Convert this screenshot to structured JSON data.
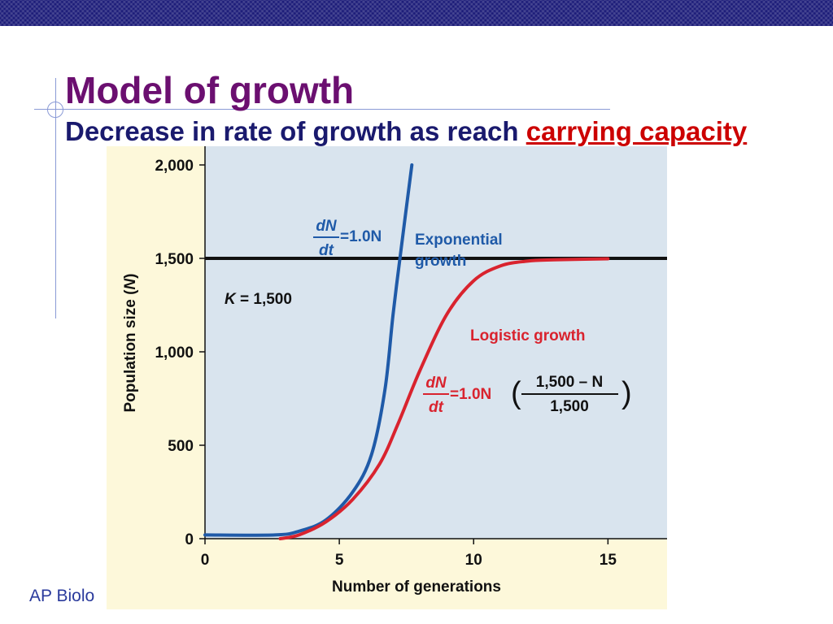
{
  "slide": {
    "title": "Model of growth",
    "subtitle_prefix": "Decrease in rate of growth as reach ",
    "subtitle_highlight": "carrying capacity",
    "footer": "AP Biolo"
  },
  "colors": {
    "title": "#6b0f70",
    "subtitle": "#1a1a6e",
    "highlight": "#cc0000",
    "exponential": "#1f5aa8",
    "logistic": "#d9232e",
    "carrying_line": "#111111",
    "plot_background": "#d9e4ee",
    "figure_background": "#fdf8da"
  },
  "chart_data": {
    "type": "line",
    "xlabel": "Number of generations",
    "ylabel_prefix": "Population size (",
    "ylabel_var": "N",
    "ylabel_suffix": ")",
    "xlim": [
      0,
      17.2
    ],
    "ylim": [
      0,
      2100
    ],
    "x_ticks": [
      "0",
      "5",
      "10",
      "15"
    ],
    "y_ticks": [
      "0",
      "500",
      "1,000",
      "1,500",
      "2,000"
    ],
    "carrying_capacity": {
      "value": 1500,
      "label_var": "K",
      "label_rest": " = 1,500"
    },
    "series": [
      {
        "name": "Exponential growth",
        "label_line1": "Exponential",
        "label_line2": "growth",
        "equation": {
          "numer": "dN",
          "denom": "dt",
          "rhs": "=1.0N"
        },
        "x": [
          0,
          2.6,
          3.5,
          4.5,
          5.5,
          6.2,
          6.7,
          7.0,
          7.3,
          7.7
        ],
        "y": [
          20,
          20,
          40,
          100,
          250,
          450,
          800,
          1200,
          1550,
          2000
        ]
      },
      {
        "name": "Logistic growth",
        "label": "Logistic growth",
        "equation": {
          "numer": "dN",
          "denom": "dt",
          "rhs": "=1.0N",
          "frac_numer": "1,500 – N",
          "frac_denom": "1,500"
        },
        "x": [
          2.8,
          3.5,
          4.5,
          5.5,
          6.5,
          7.2,
          8.0,
          9.0,
          10.0,
          11.0,
          12.0,
          13.0,
          15.0
        ],
        "y": [
          0,
          20,
          90,
          210,
          400,
          620,
          900,
          1200,
          1380,
          1460,
          1485,
          1492,
          1498
        ]
      }
    ]
  }
}
